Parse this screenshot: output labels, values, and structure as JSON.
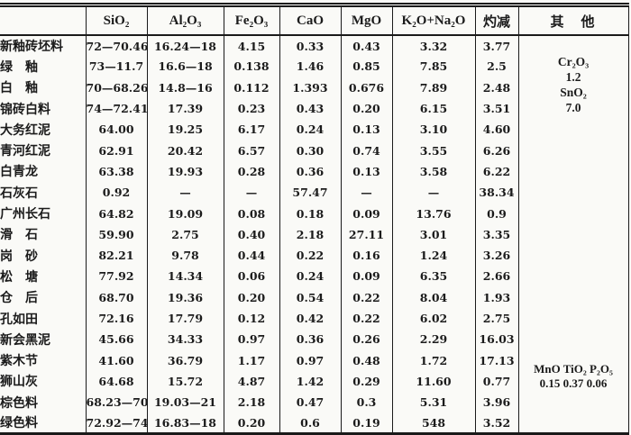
{
  "table": {
    "columns": [
      "",
      "SiO₂",
      "Al₂O₃",
      "Fe₂O₃",
      "CaO",
      "MgO",
      "K₂O+Na₂O",
      "灼减",
      "其　他"
    ],
    "rows": [
      {
        "label": "新釉砖坯料",
        "values": [
          "72—70.46",
          "16.24—18",
          "4.15",
          "0.33",
          "0.43",
          "3.32",
          "3.77"
        ]
      },
      {
        "label": "绿　釉",
        "values": [
          "73—11.7",
          "16.6—18",
          "0.138",
          "1.46",
          "0.85",
          "7.85",
          "2.5"
        ]
      },
      {
        "label": "白　釉",
        "values": [
          "70—68.26",
          "14.8—16",
          "0.112",
          "1.393",
          "0.676",
          "7.89",
          "2.48"
        ]
      },
      {
        "label": "锦砖白料",
        "values": [
          "74—72.41",
          "17.39",
          "0.23",
          "0.43",
          "0.20",
          "6.15",
          "3.51"
        ]
      },
      {
        "label": "大务红泥",
        "values": [
          "64.00",
          "19.25",
          "6.17",
          "0.24",
          "0.13",
          "3.10",
          "4.60"
        ]
      },
      {
        "label": "青河红泥",
        "values": [
          "62.91",
          "20.42",
          "6.57",
          "0.30",
          "0.74",
          "3.55",
          "6.26"
        ]
      },
      {
        "label": "白青龙",
        "values": [
          "63.38",
          "19.93",
          "0.28",
          "0.36",
          "0.13",
          "3.58",
          "6.22"
        ]
      },
      {
        "label": "石灰石",
        "values": [
          "0.92",
          "—",
          "—",
          "57.47",
          "—",
          "—",
          "38.34"
        ]
      },
      {
        "label": "广州长石",
        "values": [
          "64.82",
          "19.09",
          "0.08",
          "0.18",
          "0.09",
          "13.76",
          "0.9"
        ]
      },
      {
        "label": "滑　石",
        "values": [
          "59.90",
          "2.75",
          "0.40",
          "2.18",
          "27.11",
          "3.01",
          "3.35"
        ]
      },
      {
        "label": "岗　砂",
        "values": [
          "82.21",
          "9.78",
          "0.44",
          "0.22",
          "0.16",
          "1.24",
          "3.26"
        ]
      },
      {
        "label": "松　塘",
        "values": [
          "77.92",
          "14.34",
          "0.06",
          "0.24",
          "0.09",
          "6.35",
          "2.66"
        ]
      },
      {
        "label": "仓　后",
        "values": [
          "68.70",
          "19.36",
          "0.20",
          "0.54",
          "0.22",
          "8.04",
          "1.93"
        ]
      },
      {
        "label": "孔如田",
        "values": [
          "72.16",
          "17.79",
          "0.12",
          "0.42",
          "0.22",
          "6.02",
          "2.75"
        ]
      },
      {
        "label": "新会黑泥",
        "values": [
          "45.66",
          "34.33",
          "0.97",
          "0.36",
          "0.26",
          "2.29",
          "16.03"
        ]
      },
      {
        "label": "紫木节",
        "values": [
          "41.60",
          "36.79",
          "1.17",
          "0.97",
          "0.48",
          "1.72",
          "17.13"
        ]
      },
      {
        "label": "狮山灰",
        "values": [
          "64.68",
          "15.72",
          "4.87",
          "1.42",
          "0.29",
          "11.60",
          "0.77"
        ]
      },
      {
        "label": "棕色料",
        "values": [
          "68.23—70",
          "19.03—21",
          "2.18",
          "0.47",
          "0.3",
          "5.31",
          "3.96"
        ]
      },
      {
        "label": "绿色料",
        "values": [
          "72.92—74",
          "16.83—18",
          "0.20",
          "0.6",
          "0.19",
          "548",
          "3.52"
        ]
      }
    ],
    "others_blocks": [
      {
        "lines": [
          "Cr₂O₃",
          "1.2",
          "SnO₂",
          "7.0"
        ]
      },
      {
        "lines": [
          "MnO TiO₂ P₂O₅",
          "0.15 0.37 0.06"
        ]
      }
    ]
  }
}
